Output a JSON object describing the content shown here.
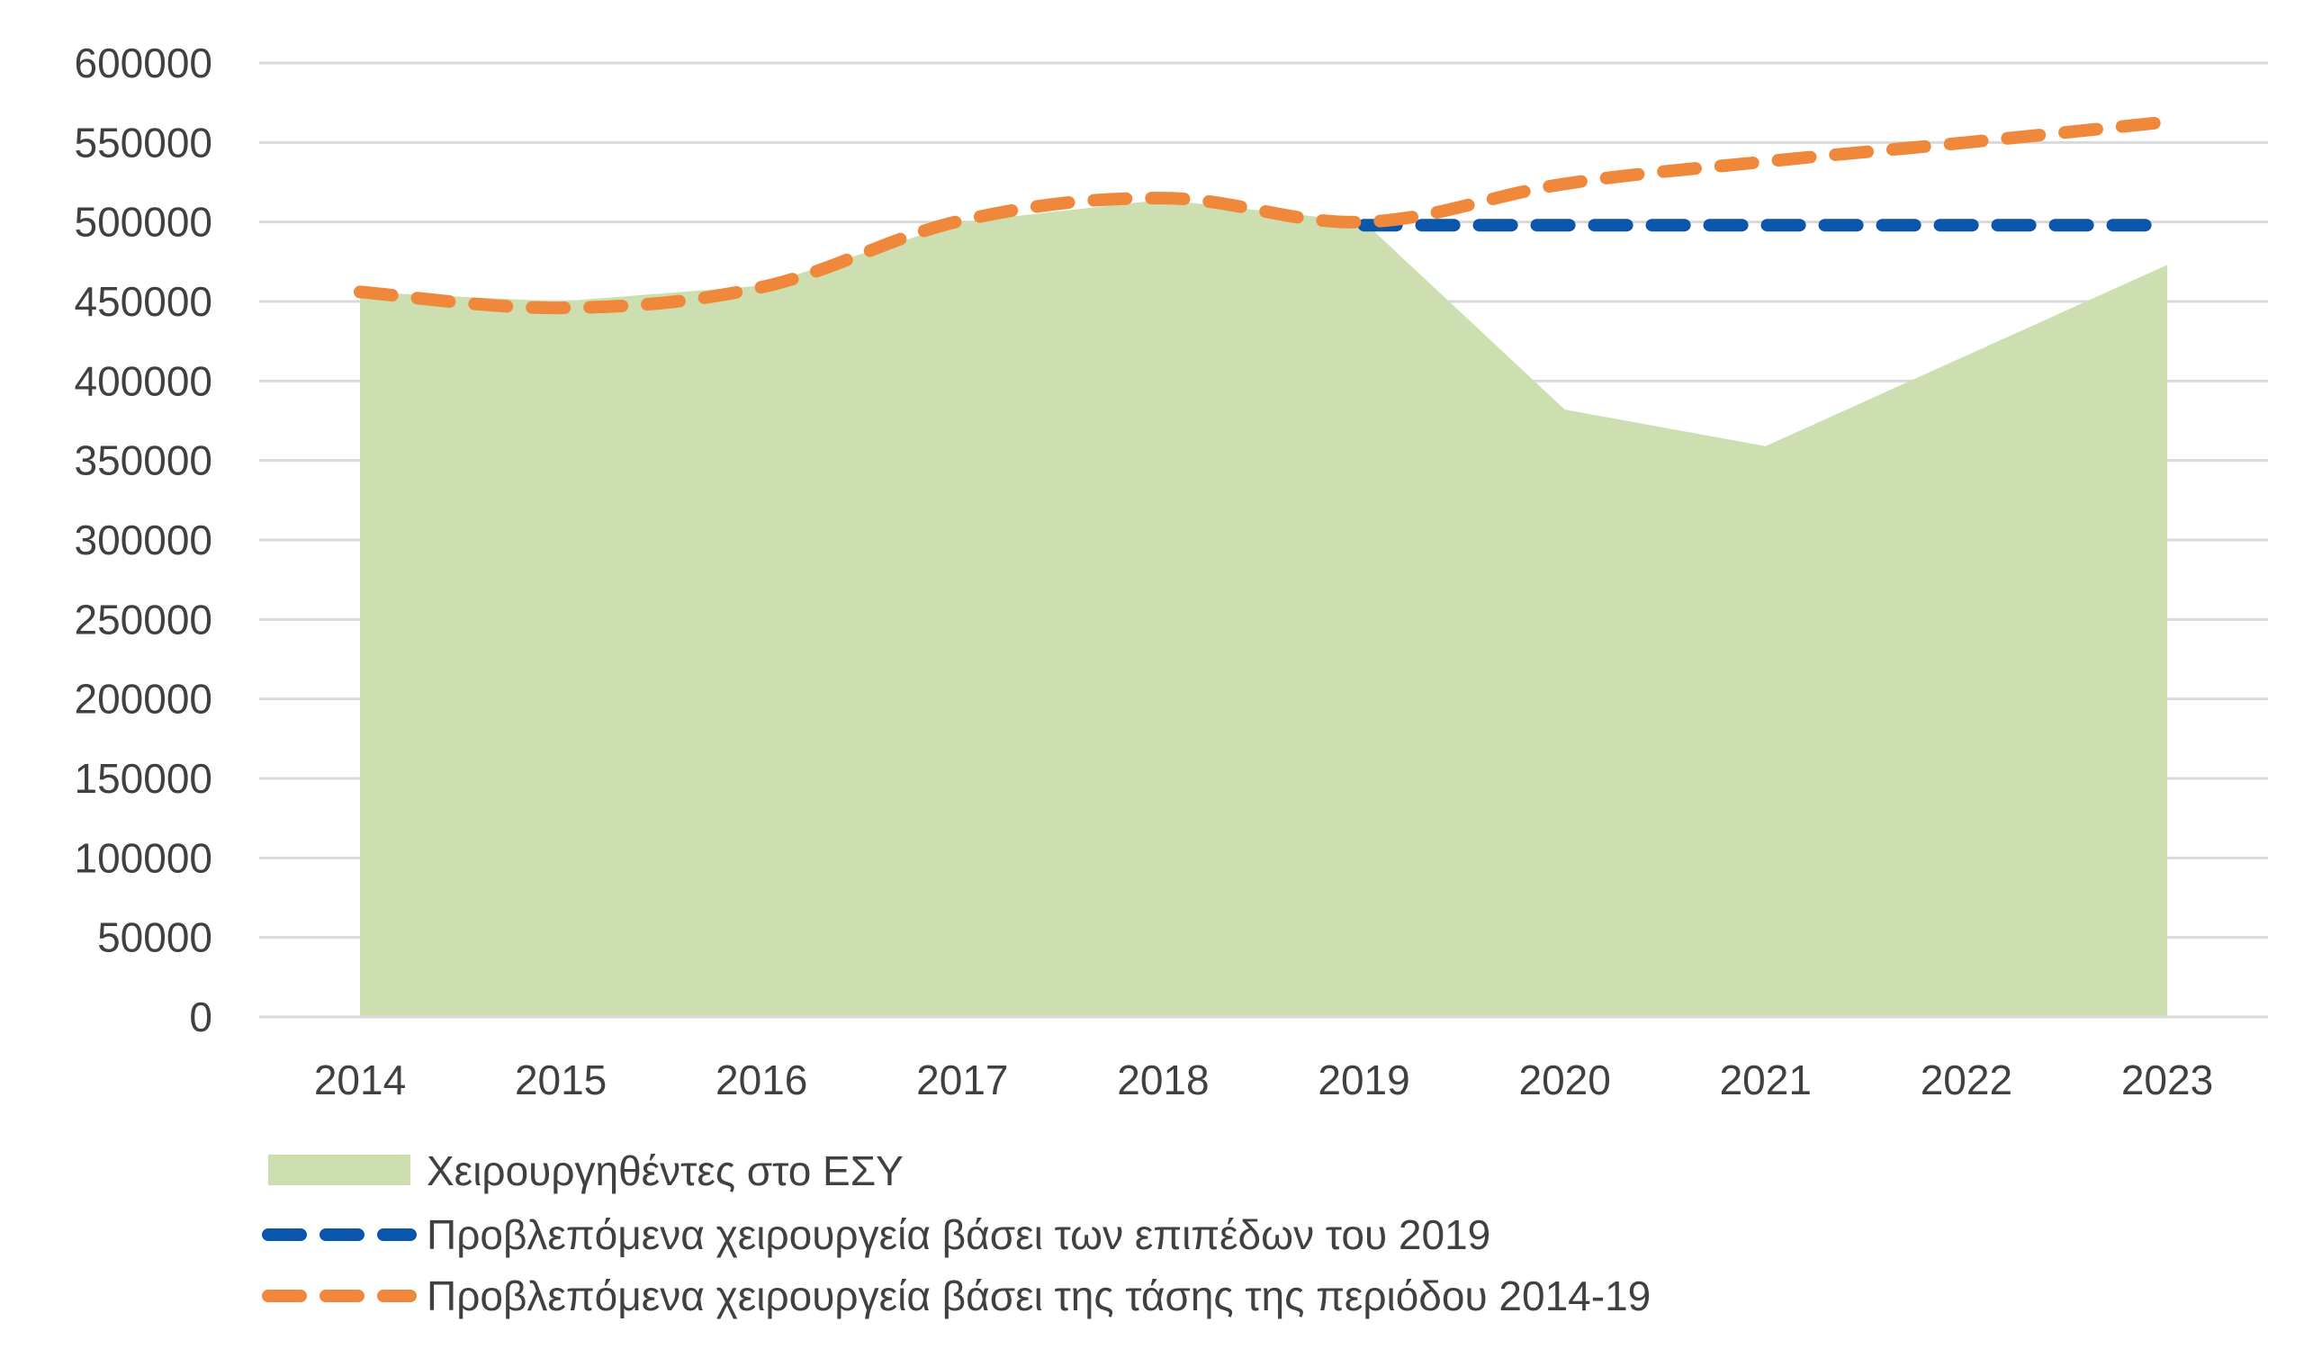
{
  "chart_data": {
    "type": "area",
    "title": "",
    "xlabel": "",
    "ylabel": "",
    "ylim": [
      0,
      600000
    ],
    "ytick_step": 50000,
    "categories": [
      "2014",
      "2015",
      "2016",
      "2017",
      "2018",
      "2019",
      "2020",
      "2021",
      "2022",
      "2023"
    ],
    "yticks": [
      "0",
      "50000",
      "100000",
      "150000",
      "200000",
      "250000",
      "300000",
      "350000",
      "400000",
      "450000",
      "500000",
      "550000",
      "600000"
    ],
    "grid": true,
    "legend_position": "bottom-left",
    "series": [
      {
        "name": "Χειρουργηθέντες στο ΕΣΥ",
        "kind": "area",
        "color": "#cddfb0",
        "values": [
          456000,
          450000,
          460000,
          500000,
          514000,
          500000,
          382000,
          359000,
          416000,
          473000
        ]
      },
      {
        "name": "Προβλεπόμενα χειρουργεία βάσει των επιπέδων του 2019",
        "kind": "dashed-line",
        "color": "#0a56ac",
        "values": [
          null,
          null,
          null,
          null,
          null,
          498000,
          498000,
          498000,
          498000,
          498000
        ]
      },
      {
        "name": "Προβλεπόμενα χειρουργεία βάσει της τάσης της περιόδου 2014-19",
        "kind": "dashed-line",
        "color": "#f0883b",
        "values": [
          456000,
          446000,
          459000,
          501000,
          515000,
          500000,
          524000,
          538000,
          550000,
          563000
        ]
      }
    ]
  }
}
